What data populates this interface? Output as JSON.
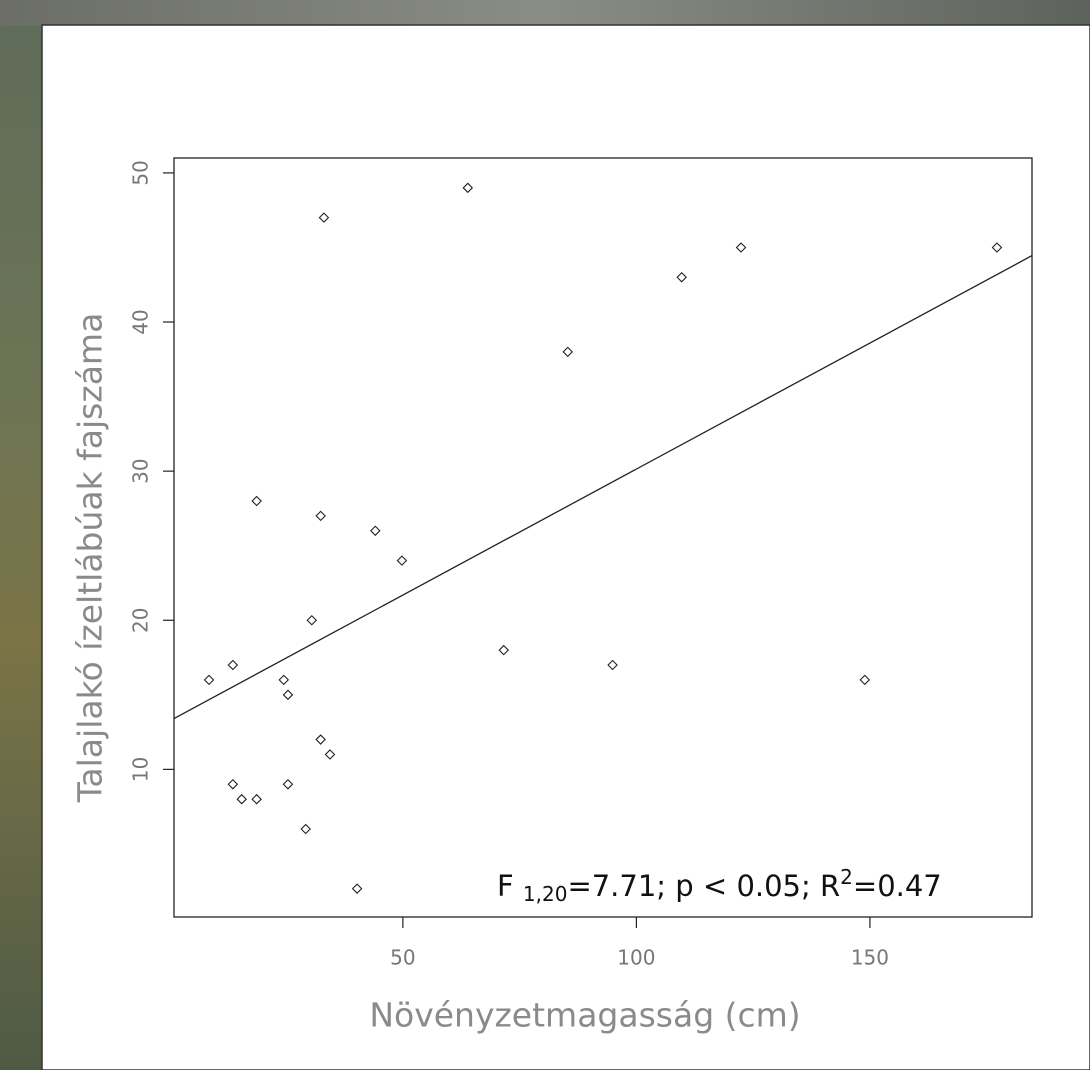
{
  "chart_data": {
    "type": "scatter",
    "xlabel": "Növényzetmagasság (cm)",
    "ylabel": "Talajlakó ízeltlábúak fajszáma",
    "annotation": [
      "F ",
      "1,20",
      "=7.71; p < 0.05; R",
      "2",
      "=0.47"
    ],
    "x": [
      8.5,
      13.6,
      13.6,
      15.5,
      18.7,
      18.7,
      24.5,
      25.4,
      25.4,
      29.2,
      30.5,
      32.4,
      32.4,
      33.1,
      34.4,
      40.2,
      44.1,
      49.8,
      63.9,
      71.6,
      85.3,
      94.9,
      109.7,
      122.4,
      148.9,
      177.2
    ],
    "values": [
      16,
      17,
      9,
      8,
      8,
      28,
      16,
      15,
      9,
      6,
      20,
      12,
      27,
      47,
      11,
      2,
      26,
      24,
      49,
      18,
      38,
      17,
      43,
      45,
      16,
      45
    ],
    "color": "#222222",
    "regression": {
      "intercept": 13.24,
      "slope": 0.169
    },
    "xlim": [
      1,
      184.7
    ],
    "ylim": [
      0.1,
      51
    ],
    "xticks": [
      50,
      100,
      150
    ],
    "yticks": [
      10,
      20,
      30,
      40,
      50
    ]
  }
}
